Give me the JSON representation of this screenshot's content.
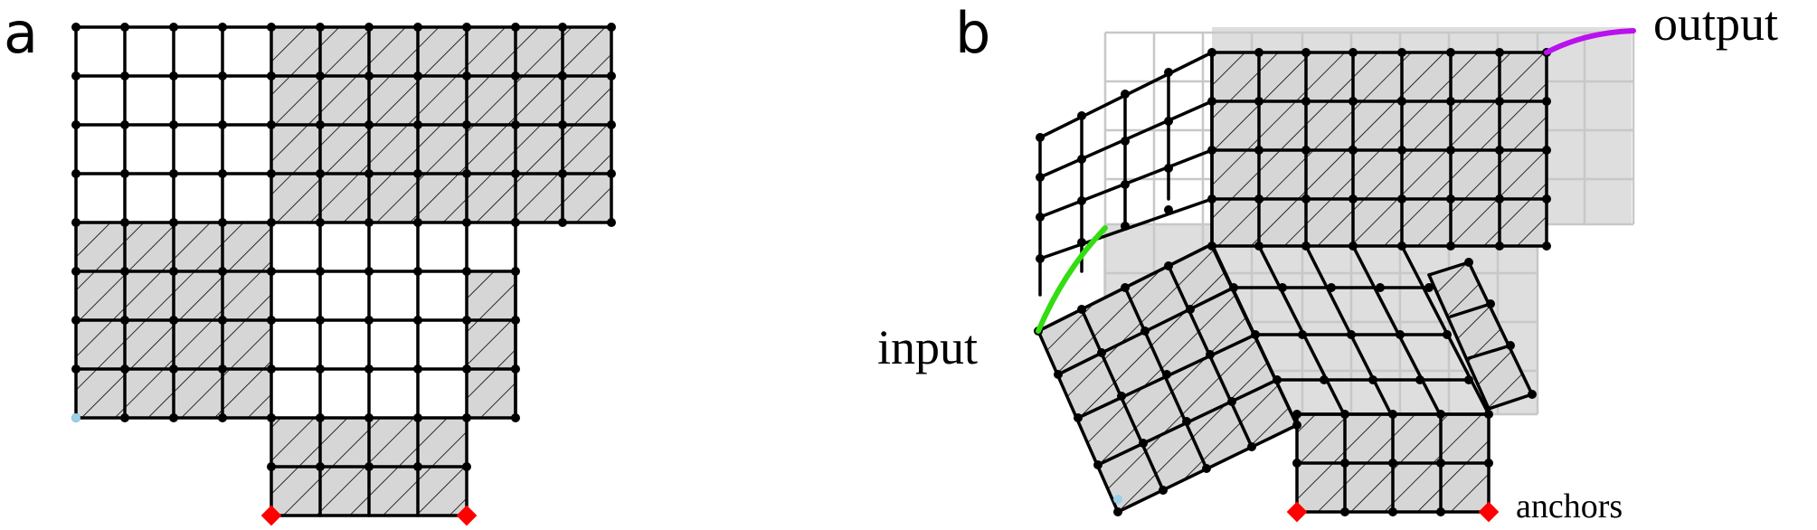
{
  "panels": {
    "a": {
      "label": "a"
    },
    "b": {
      "label": "b",
      "input_label": "input",
      "output_label": "output",
      "anchors_label": "anchors"
    }
  },
  "colors": {
    "grid_line": "#000000",
    "shaded_fill": "#d6d6d6",
    "ghost_grid": "#c8c8c8",
    "anchor": "#ff0000",
    "input_curve": "#33dd11",
    "output_curve": "#bb11ee",
    "origin_point": "#9ad0ea"
  }
}
